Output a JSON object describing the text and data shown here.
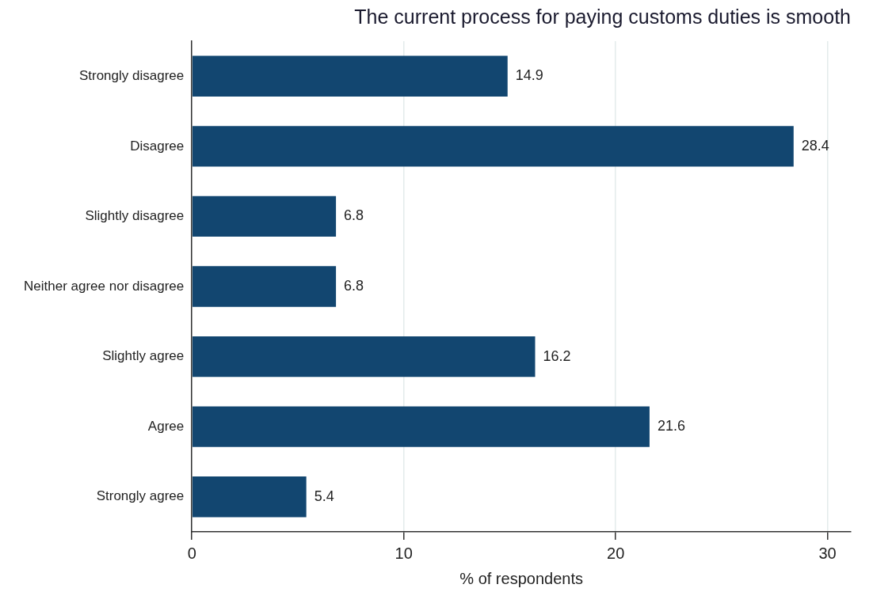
{
  "chart_data": {
    "type": "bar",
    "orientation": "horizontal",
    "title": "The current process for paying customs duties is smooth",
    "xlabel": "% of respondents",
    "categories": [
      "Strongly disagree",
      "Disagree",
      "Slightly disagree",
      "Neither agree nor disagree",
      "Slightly agree",
      "Agree",
      "Strongly agree"
    ],
    "values": [
      14.9,
      28.4,
      6.8,
      6.8,
      16.2,
      21.6,
      5.4
    ],
    "color": "#124670",
    "xlim": [
      0,
      31.1
    ],
    "xticks": [
      0,
      10,
      20,
      30
    ],
    "grid": "x",
    "data_labels": true,
    "legend": false
  }
}
